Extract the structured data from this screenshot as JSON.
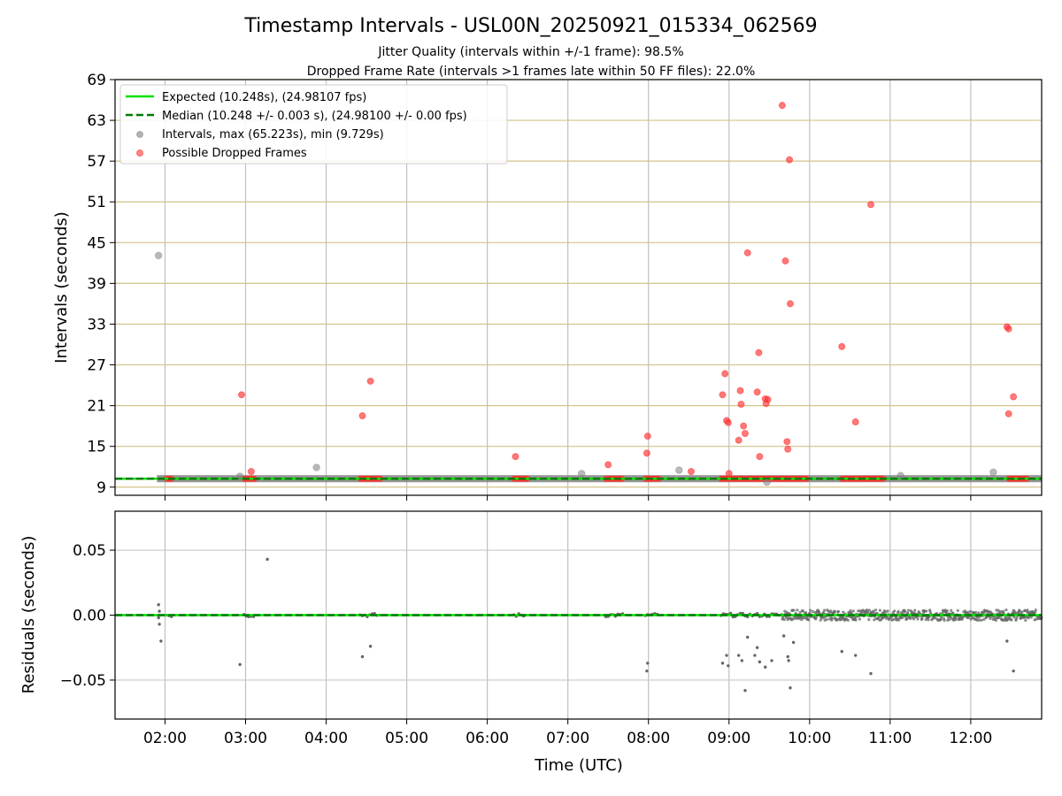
{
  "chart_data": [
    {
      "type": "scatter",
      "title": "Timestamp Intervals - USL00N_20250921_015334_062569",
      "subtitle_1": "Jitter Quality (intervals within +/-1 frame): 98.5%",
      "subtitle_2": "Dropped Frame Rate (intervals >1 frames late within 50 FF files): 22.0%",
      "xlabel": "",
      "ylabel": "Intervals (seconds)",
      "xlim": [
        1.38,
        12.88
      ],
      "ylim": [
        7.8,
        69
      ],
      "yticks": [
        "9",
        "15",
        "21",
        "27",
        "33",
        "39",
        "45",
        "51",
        "57",
        "63",
        "69"
      ],
      "expected_value": 10.248,
      "median_value": 10.248,
      "baseline_band": {
        "x_start": 1.9,
        "x_end": 12.88,
        "value": 10.248
      },
      "legend": [
        {
          "label": "Expected (10.248s), (24.98107 fps)",
          "style": "solid-line",
          "color": "#00e000"
        },
        {
          "label": "Median (10.248 +/- 0.003 s), (24.98100 +/- 0.00 fps)",
          "style": "dashed-line",
          "color": "#007a00"
        },
        {
          "label": "Intervals, max (65.223s), min (9.729s)",
          "style": "marker",
          "color": "#808080"
        },
        {
          "label": "Possible Dropped Frames",
          "style": "marker",
          "color": "#ff3333"
        }
      ],
      "series": [
        {
          "name": "Intervals",
          "color": "#808080",
          "points": [
            [
              1.92,
              43.1
            ],
            [
              2.93,
              10.6
            ],
            [
              3.88,
              11.9
            ],
            [
              7.17,
              11.0
            ],
            [
              8.38,
              11.5
            ],
            [
              11.13,
              10.7
            ],
            [
              12.28,
              11.2
            ],
            [
              9.47,
              9.73
            ]
          ]
        },
        {
          "name": "Possible Dropped Frames",
          "color": "#ff3333",
          "points": [
            [
              2.95,
              22.6
            ],
            [
              3.07,
              11.3
            ],
            [
              4.45,
              19.5
            ],
            [
              4.55,
              24.6
            ],
            [
              6.35,
              13.5
            ],
            [
              7.5,
              12.3
            ],
            [
              7.98,
              14.0
            ],
            [
              7.99,
              16.5
            ],
            [
              8.53,
              11.3
            ],
            [
              8.92,
              22.6
            ],
            [
              8.95,
              25.7
            ],
            [
              8.97,
              18.8
            ],
            [
              8.99,
              18.5
            ],
            [
              9.0,
              11.0
            ],
            [
              9.12,
              15.9
            ],
            [
              9.14,
              23.2
            ],
            [
              9.15,
              21.2
            ],
            [
              9.18,
              18.0
            ],
            [
              9.2,
              16.9
            ],
            [
              9.23,
              43.5
            ],
            [
              9.35,
              23.0
            ],
            [
              9.37,
              28.8
            ],
            [
              9.38,
              13.5
            ],
            [
              9.45,
              22.0
            ],
            [
              9.46,
              21.3
            ],
            [
              9.48,
              21.9
            ],
            [
              9.66,
              65.2
            ],
            [
              9.7,
              42.3
            ],
            [
              9.72,
              15.7
            ],
            [
              9.73,
              14.6
            ],
            [
              9.75,
              57.2
            ],
            [
              9.76,
              36.0
            ],
            [
              10.4,
              29.7
            ],
            [
              10.57,
              18.6
            ],
            [
              10.76,
              50.6
            ],
            [
              12.45,
              32.6
            ],
            [
              12.47,
              32.3
            ],
            [
              12.47,
              19.8
            ],
            [
              12.53,
              22.3
            ]
          ],
          "baseline_clusters": [
            [
              2.02,
              2.08
            ],
            [
              2.98,
              3.12
            ],
            [
              4.42,
              4.68
            ],
            [
              6.33,
              6.5
            ],
            [
              7.47,
              7.68
            ],
            [
              7.96,
              8.13
            ],
            [
              8.9,
              9.97
            ],
            [
              10.4,
              10.77
            ],
            [
              10.77,
              10.92
            ],
            [
              12.47,
              12.7
            ]
          ]
        }
      ]
    },
    {
      "type": "scatter",
      "xlabel": "Time (UTC)",
      "ylabel": "Residuals (seconds)",
      "xlim": [
        1.38,
        12.88
      ],
      "ylim": [
        -0.08,
        0.08
      ],
      "yticks": [
        "−0.05",
        "0.00",
        "0.05"
      ],
      "ytick_values": [
        -0.05,
        0.0,
        0.05
      ],
      "xticks": [
        "02:00",
        "03:00",
        "04:00",
        "05:00",
        "06:00",
        "07:00",
        "08:00",
        "09:00",
        "10:00",
        "11:00",
        "12:00"
      ],
      "xtick_values": [
        2,
        3,
        4,
        5,
        6,
        7,
        8,
        9,
        10,
        11,
        12
      ],
      "reference_value": 0.0,
      "series": [
        {
          "name": "Residuals",
          "color": "#666666",
          "points": [
            [
              1.92,
              0.008
            ],
            [
              1.93,
              0.003
            ],
            [
              1.92,
              -0.002
            ],
            [
              1.93,
              -0.007
            ],
            [
              1.95,
              -0.02
            ],
            [
              2.93,
              -0.038
            ],
            [
              3.27,
              0.043
            ],
            [
              4.45,
              -0.032
            ],
            [
              4.55,
              -0.024
            ],
            [
              7.98,
              -0.043
            ],
            [
              7.99,
              -0.037
            ],
            [
              8.92,
              -0.037
            ],
            [
              8.97,
              -0.031
            ],
            [
              8.99,
              -0.039
            ],
            [
              9.12,
              -0.031
            ],
            [
              9.16,
              -0.035
            ],
            [
              9.2,
              -0.058
            ],
            [
              9.23,
              -0.017
            ],
            [
              9.32,
              -0.031
            ],
            [
              9.35,
              -0.025
            ],
            [
              9.38,
              -0.036
            ],
            [
              9.45,
              -0.04
            ],
            [
              9.53,
              -0.035
            ],
            [
              9.68,
              -0.016
            ],
            [
              9.73,
              -0.032
            ],
            [
              9.74,
              -0.035
            ],
            [
              9.76,
              -0.056
            ],
            [
              9.8,
              -0.021
            ],
            [
              10.4,
              -0.028
            ],
            [
              10.57,
              -0.031
            ],
            [
              10.76,
              -0.045
            ],
            [
              12.45,
              -0.02
            ],
            [
              12.53,
              -0.043
            ]
          ],
          "noisy_band": {
            "x_start": 9.65,
            "x_end": 12.88,
            "amplitude": 0.004
          }
        }
      ]
    }
  ]
}
